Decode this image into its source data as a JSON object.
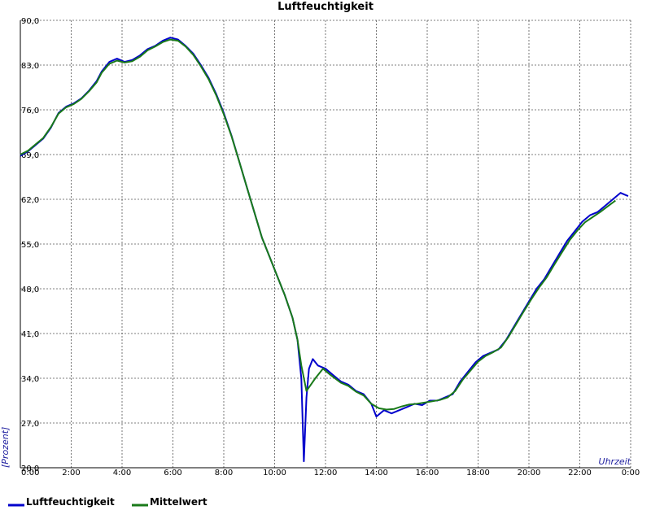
{
  "chart_data": {
    "type": "line",
    "title": "Luftfeuchtigkeit",
    "xlabel": "Uhrzeit",
    "ylabel": "[Prozent]",
    "x_unit": "hour",
    "xlim": [
      0,
      24
    ],
    "ylim": [
      20,
      90
    ],
    "y_ticks": [
      "20,0",
      "27,0",
      "34,0",
      "41,0",
      "48,0",
      "55,0",
      "62,0",
      "69,0",
      "76,0",
      "83,0",
      "90,0"
    ],
    "x_ticks": [
      "0:00",
      "2:00",
      "4:00",
      "6:00",
      "8:00",
      "10:00",
      "12:00",
      "14:00",
      "16:00",
      "18:00",
      "20:00",
      "22:00",
      "0:00"
    ],
    "grid": true,
    "legend_position": "bottom-left",
    "series": [
      {
        "name": "Luftfeuchtigkeit",
        "color": "#0000cc",
        "points": [
          [
            0.0,
            68.8
          ],
          [
            0.3,
            69.5
          ],
          [
            0.6,
            70.5
          ],
          [
            0.9,
            71.5
          ],
          [
            1.2,
            73.2
          ],
          [
            1.5,
            75.5
          ],
          [
            1.8,
            76.5
          ],
          [
            2.1,
            77.0
          ],
          [
            2.4,
            77.8
          ],
          [
            2.7,
            79.0
          ],
          [
            3.0,
            80.5
          ],
          [
            3.2,
            82.0
          ],
          [
            3.5,
            83.5
          ],
          [
            3.8,
            84.0
          ],
          [
            4.1,
            83.5
          ],
          [
            4.4,
            83.8
          ],
          [
            4.7,
            84.5
          ],
          [
            5.0,
            85.5
          ],
          [
            5.3,
            86.0
          ],
          [
            5.6,
            86.8
          ],
          [
            5.9,
            87.3
          ],
          [
            6.2,
            87.0
          ],
          [
            6.5,
            86.0
          ],
          [
            6.8,
            84.8
          ],
          [
            7.1,
            83.0
          ],
          [
            7.4,
            81.0
          ],
          [
            7.7,
            78.5
          ],
          [
            8.0,
            75.5
          ],
          [
            8.3,
            72.0
          ],
          [
            8.6,
            68.0
          ],
          [
            8.9,
            64.0
          ],
          [
            9.2,
            60.0
          ],
          [
            9.5,
            56.0
          ],
          [
            9.8,
            53.0
          ],
          [
            10.1,
            50.0
          ],
          [
            10.4,
            47.0
          ],
          [
            10.7,
            43.5
          ],
          [
            10.9,
            40.0
          ],
          [
            11.05,
            34.0
          ],
          [
            11.15,
            21.0
          ],
          [
            11.25,
            31.0
          ],
          [
            11.35,
            35.5
          ],
          [
            11.5,
            37.0
          ],
          [
            11.7,
            36.0
          ],
          [
            12.0,
            35.5
          ],
          [
            12.3,
            34.5
          ],
          [
            12.6,
            33.5
          ],
          [
            12.9,
            33.0
          ],
          [
            13.2,
            32.0
          ],
          [
            13.5,
            31.5
          ],
          [
            13.8,
            30.0
          ],
          [
            14.0,
            28.0
          ],
          [
            14.3,
            29.0
          ],
          [
            14.6,
            28.5
          ],
          [
            14.9,
            29.0
          ],
          [
            15.2,
            29.5
          ],
          [
            15.5,
            30.0
          ],
          [
            15.8,
            29.8
          ],
          [
            16.1,
            30.5
          ],
          [
            16.4,
            30.5
          ],
          [
            16.7,
            31.0
          ],
          [
            17.0,
            31.5
          ],
          [
            17.3,
            33.5
          ],
          [
            17.6,
            35.0
          ],
          [
            17.9,
            36.5
          ],
          [
            18.2,
            37.5
          ],
          [
            18.5,
            38.0
          ],
          [
            18.8,
            38.5
          ],
          [
            19.1,
            40.0
          ],
          [
            19.4,
            42.0
          ],
          [
            19.7,
            44.0
          ],
          [
            20.0,
            46.0
          ],
          [
            20.3,
            48.0
          ],
          [
            20.6,
            49.5
          ],
          [
            20.9,
            51.5
          ],
          [
            21.2,
            53.5
          ],
          [
            21.5,
            55.5
          ],
          [
            21.8,
            57.0
          ],
          [
            22.1,
            58.5
          ],
          [
            22.4,
            59.5
          ],
          [
            22.7,
            60.0
          ],
          [
            23.0,
            61.0
          ],
          [
            23.3,
            62.0
          ],
          [
            23.6,
            63.0
          ],
          [
            23.9,
            62.5
          ]
        ]
      },
      {
        "name": "Mittelwert",
        "color": "#1a7a1a",
        "points": [
          [
            0.0,
            69.0
          ],
          [
            0.3,
            69.6
          ],
          [
            0.6,
            70.6
          ],
          [
            0.9,
            71.6
          ],
          [
            1.2,
            73.3
          ],
          [
            1.5,
            75.4
          ],
          [
            1.8,
            76.4
          ],
          [
            2.1,
            76.9
          ],
          [
            2.4,
            77.7
          ],
          [
            2.7,
            78.9
          ],
          [
            3.0,
            80.3
          ],
          [
            3.2,
            81.8
          ],
          [
            3.5,
            83.2
          ],
          [
            3.8,
            83.7
          ],
          [
            4.1,
            83.4
          ],
          [
            4.4,
            83.6
          ],
          [
            4.7,
            84.3
          ],
          [
            5.0,
            85.3
          ],
          [
            5.3,
            85.9
          ],
          [
            5.6,
            86.6
          ],
          [
            5.9,
            87.0
          ],
          [
            6.2,
            86.8
          ],
          [
            6.5,
            85.9
          ],
          [
            6.8,
            84.6
          ],
          [
            7.1,
            82.8
          ],
          [
            7.4,
            80.8
          ],
          [
            7.7,
            78.3
          ],
          [
            8.0,
            75.3
          ],
          [
            8.3,
            71.9
          ],
          [
            8.6,
            68.0
          ],
          [
            8.9,
            64.0
          ],
          [
            9.2,
            60.0
          ],
          [
            9.5,
            56.0
          ],
          [
            9.8,
            53.0
          ],
          [
            10.1,
            50.0
          ],
          [
            10.4,
            47.0
          ],
          [
            10.7,
            43.5
          ],
          [
            10.9,
            40.0
          ],
          [
            11.05,
            36.0
          ],
          [
            11.25,
            32.0
          ],
          [
            11.6,
            34.0
          ],
          [
            11.9,
            35.5
          ],
          [
            12.2,
            34.5
          ],
          [
            12.6,
            33.3
          ],
          [
            12.9,
            32.8
          ],
          [
            13.2,
            31.9
          ],
          [
            13.5,
            31.3
          ],
          [
            13.8,
            30.0
          ],
          [
            14.1,
            29.3
          ],
          [
            14.4,
            29.1
          ],
          [
            14.7,
            29.2
          ],
          [
            15.0,
            29.6
          ],
          [
            15.3,
            29.9
          ],
          [
            15.6,
            30.0
          ],
          [
            15.9,
            30.2
          ],
          [
            16.2,
            30.4
          ],
          [
            16.5,
            30.6
          ],
          [
            16.8,
            31.0
          ],
          [
            17.1,
            32.0
          ],
          [
            17.4,
            33.8
          ],
          [
            17.7,
            35.2
          ],
          [
            18.0,
            36.6
          ],
          [
            18.3,
            37.5
          ],
          [
            18.6,
            38.1
          ],
          [
            18.9,
            38.8
          ],
          [
            19.2,
            40.5
          ],
          [
            19.5,
            42.5
          ],
          [
            19.8,
            44.5
          ],
          [
            20.1,
            46.4
          ],
          [
            20.4,
            48.2
          ],
          [
            20.7,
            49.8
          ],
          [
            21.0,
            51.8
          ],
          [
            21.3,
            53.7
          ],
          [
            21.6,
            55.6
          ],
          [
            21.9,
            57.1
          ],
          [
            22.2,
            58.4
          ],
          [
            22.5,
            59.2
          ],
          [
            22.8,
            60.0
          ],
          [
            23.1,
            60.9
          ],
          [
            23.4,
            61.8
          ]
        ]
      }
    ]
  }
}
